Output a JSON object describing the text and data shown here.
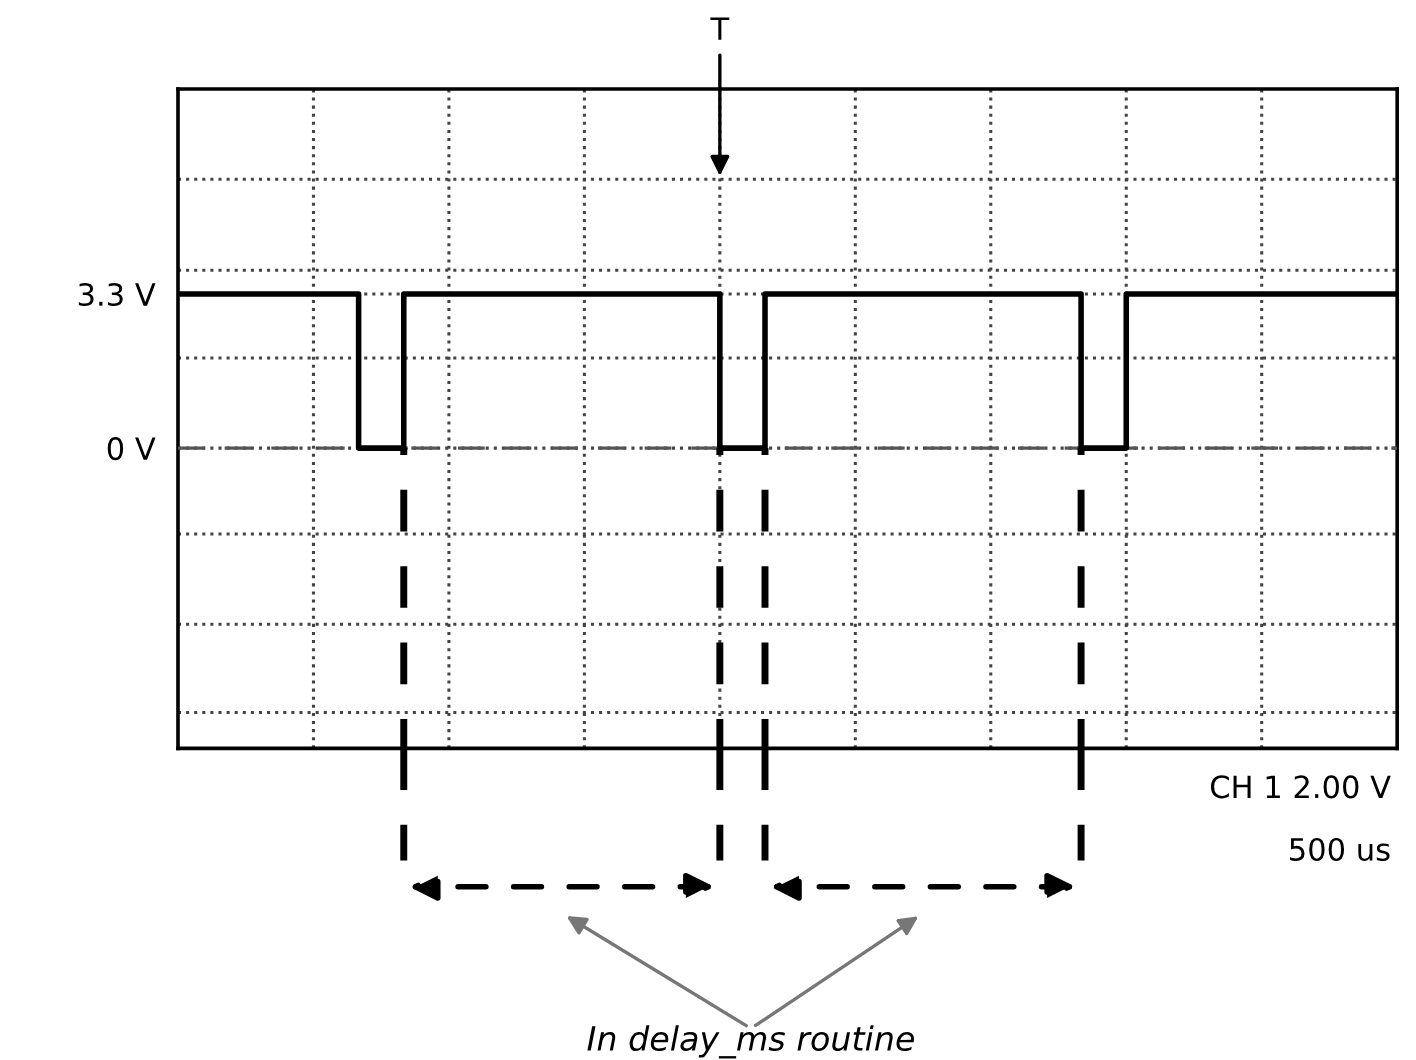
{
  "chart_data": {
    "type": "step",
    "categories": [
      null,
      null,
      null,
      null,
      null,
      null,
      null,
      null,
      null,
      null,
      null,
      null,
      null,
      null,
      null,
      null,
      null,
      null,
      null,
      null,
      null,
      null,
      null,
      null,
      null,
      null,
      null,
      null
    ],
    "series": [
      {
        "color": "#000000",
        "values": [
          3.3,
          3.3,
          3.3,
          3.3,
          0,
          3.3,
          3.3,
          3.3,
          3.3,
          3.3,
          3.3,
          3.3,
          0,
          3.3,
          3.3,
          3.3,
          3.3,
          3.3,
          3.3,
          3.3,
          0,
          3.3,
          3.3,
          3.3,
          3.3,
          3.3,
          3.3,
          3.3
        ]
      }
    ],
    "ylim": [
      -6.43,
      7.69
    ],
    "yticks": [
      {
        "value": -5.66,
        "label": null
      },
      {
        "value": -3.77,
        "label": null
      },
      {
        "value": -1.84,
        "label": null
      },
      {
        "value": 0,
        "label": "0 V"
      },
      {
        "value": 1.93,
        "label": null
      },
      {
        "value": 3.3,
        "label": "3.3 V"
      },
      {
        "value": 3.81,
        "label": null
      },
      {
        "value": 5.76,
        "label": null
      }
    ],
    "grid": true,
    "line_style": "solid",
    "ref_lines": [
      {
        "axis": "y",
        "value": 0,
        "color": "#555555",
        "line_style": "dashed"
      }
    ],
    "annotations": [
      "T",
      "CH 1 2.00 V",
      "500 us",
      "In delay_ms routine"
    ]
  }
}
